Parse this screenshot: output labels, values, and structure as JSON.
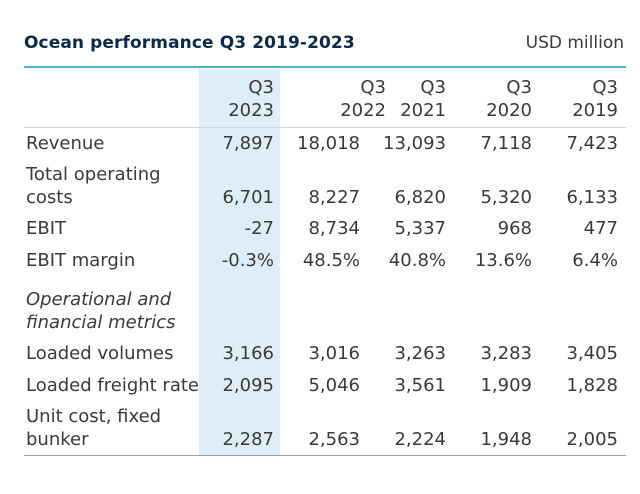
{
  "header": {
    "title": "Ocean performance Q3 2019-2023",
    "unit": "USD million"
  },
  "columns": [
    {
      "line1": "Q3",
      "line2": "2023"
    },
    {
      "line1": "Q3",
      "line2": "2022"
    },
    {
      "line1": "Q3",
      "line2": "2021"
    },
    {
      "line1": "Q3",
      "line2": "2020"
    },
    {
      "line1": "Q3",
      "line2": "2019"
    }
  ],
  "rows": [
    {
      "label1": "Revenue",
      "label2": "",
      "values": [
        "7,897",
        "18,018",
        "13,093",
        "7,118",
        "7,423"
      ]
    },
    {
      "label1": "Total operating",
      "label2": "costs",
      "values": [
        "6,701",
        "8,227",
        "6,820",
        "5,320",
        "6,133"
      ]
    },
    {
      "label1": "EBIT",
      "label2": "",
      "values": [
        "-27",
        "8,734",
        "5,337",
        "968",
        "477"
      ]
    },
    {
      "label1": "EBIT margin",
      "label2": "",
      "values": [
        "-0.3%",
        "48.5%",
        "40.8%",
        "13.6%",
        "6.4%"
      ]
    }
  ],
  "section": {
    "line1": "Operational and",
    "line2": "financial metrics"
  },
  "rows2": [
    {
      "label1": "Loaded volumes",
      "label2": "",
      "values": [
        "3,166",
        "3,016",
        "3,263",
        "3,283",
        "3,405"
      ]
    },
    {
      "label1": "Loaded freight rate",
      "label2": "",
      "values": [
        "2,095",
        "5,046",
        "3,561",
        "1,909",
        "1,828"
      ]
    },
    {
      "label1": "Unit cost, fixed",
      "label2": "bunker",
      "values": [
        "2,287",
        "2,563",
        "2,224",
        "1,948",
        "2,005"
      ]
    }
  ],
  "colors": {
    "title": "#0b2a4a",
    "accent_rule": "#47b3cf",
    "highlight": "#ddeef8",
    "text": "#3a3a3a"
  }
}
